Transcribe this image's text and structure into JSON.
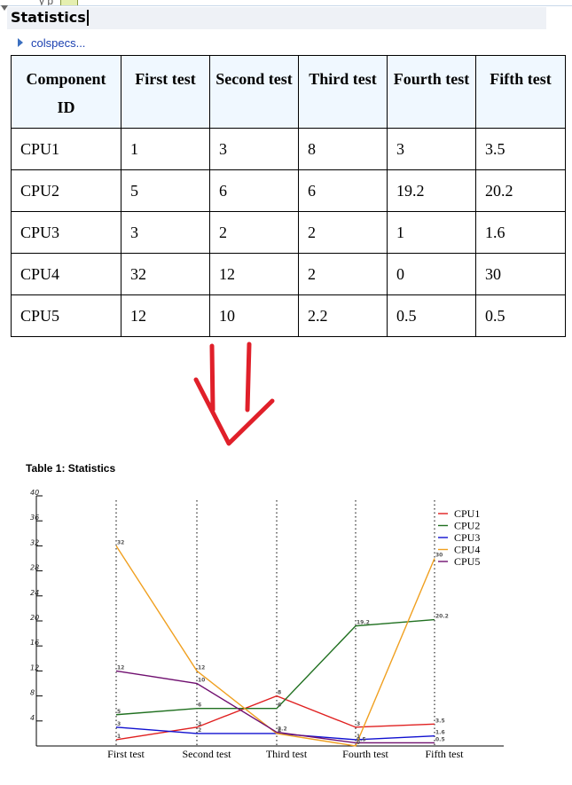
{
  "top_fragment": "y p",
  "section": {
    "title": "Statistics"
  },
  "colspecs": {
    "label": "colspecs..."
  },
  "table": {
    "headers": [
      "Component ID",
      "First test",
      "Second test",
      "Third test",
      "Fourth test",
      "Fifth test"
    ],
    "rows": [
      [
        "CPU1",
        "1",
        "3",
        "8",
        "3",
        "3.5"
      ],
      [
        "CPU2",
        "5",
        "6",
        "6",
        "19.2",
        "20.2"
      ],
      [
        "CPU3",
        "3",
        "2",
        "2",
        "1",
        "1.6"
      ],
      [
        "CPU4",
        "32",
        "12",
        "2",
        "0",
        "30"
      ],
      [
        "CPU5",
        "12",
        "10",
        "2.2",
        "0.5",
        "0.5"
      ]
    ]
  },
  "colors": {
    "arrow": "#e0202a",
    "table_header_bg": "#f0f8ff",
    "link": "#1a3fb0"
  },
  "chart_data": {
    "type": "line",
    "title": "Table 1: Statistics",
    "categories": [
      "First test",
      "Second test",
      "Third test",
      "Fourth test",
      "Fifth test"
    ],
    "series": [
      {
        "name": "CPU1",
        "color": "#e02020",
        "values": [
          1,
          3,
          8,
          3,
          3.5
        ]
      },
      {
        "name": "CPU2",
        "color": "#207020",
        "values": [
          5,
          6,
          6,
          19.2,
          20.2
        ]
      },
      {
        "name": "CPU3",
        "color": "#1010d0",
        "values": [
          3,
          2,
          2,
          1,
          1.6
        ]
      },
      {
        "name": "CPU4",
        "color": "#f0a020",
        "values": [
          32,
          12,
          2,
          0,
          30
        ]
      },
      {
        "name": "CPU5",
        "color": "#701070",
        "values": [
          12,
          10,
          2.2,
          0.5,
          0.5
        ]
      }
    ],
    "ylim": [
      0,
      40
    ],
    "yticks": [
      4,
      8,
      12,
      16,
      20,
      24,
      28,
      32,
      36,
      40
    ],
    "grid": "vertical dotted",
    "legend": "top-right",
    "xlabel": "",
    "ylabel": ""
  }
}
